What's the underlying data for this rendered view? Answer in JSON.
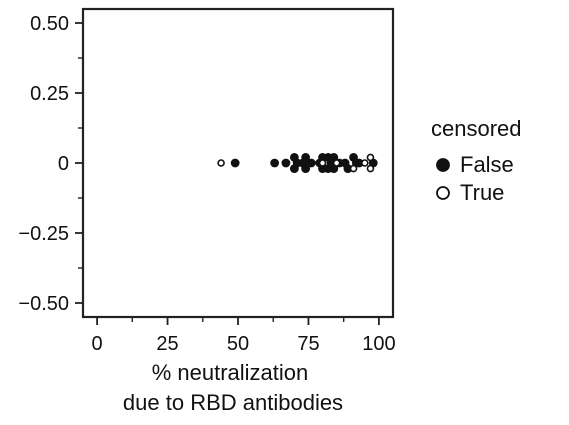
{
  "chart_data": {
    "type": "scatter",
    "xlabel": [
      "% neutralization",
      "due to RBD antibodies"
    ],
    "ylabel": "",
    "xlim": [
      -5,
      105
    ],
    "ylim": [
      -0.55,
      0.55
    ],
    "xticks": [
      {
        "value": 0,
        "label": "0"
      },
      {
        "value": 25,
        "label": "25"
      },
      {
        "value": 50,
        "label": "50"
      },
      {
        "value": 75,
        "label": "75"
      },
      {
        "value": 100,
        "label": "100"
      }
    ],
    "xminor_ticks": [
      12.5,
      37.5,
      62.5,
      87.5
    ],
    "yticks": [
      {
        "value": 0.5,
        "label": "0.50"
      },
      {
        "value": 0.25,
        "label": "0.25"
      },
      {
        "value": 0,
        "label": "0"
      },
      {
        "value": -0.25,
        "label": "−0.25"
      },
      {
        "value": -0.5,
        "label": "−0.50"
      }
    ],
    "yminor_ticks": [
      0.375,
      0.125,
      -0.125,
      -0.375
    ],
    "legend": {
      "title": "censored",
      "position": "right",
      "entries": [
        {
          "label": "False",
          "marker": "filled-circle"
        },
        {
          "label": "True",
          "marker": "open-circle"
        }
      ]
    },
    "series": [
      {
        "name": "False",
        "marker": "filled",
        "points": [
          {
            "x": 49,
            "y": 0.0
          },
          {
            "x": 63,
            "y": 0.0
          },
          {
            "x": 67,
            "y": 0.0
          },
          {
            "x": 70,
            "y": 0.02
          },
          {
            "x": 70,
            "y": -0.02
          },
          {
            "x": 71,
            "y": 0.0
          },
          {
            "x": 73,
            "y": 0.0
          },
          {
            "x": 74,
            "y": 0.02
          },
          {
            "x": 74,
            "y": -0.02
          },
          {
            "x": 76,
            "y": 0.0
          },
          {
            "x": 79,
            "y": 0.0
          },
          {
            "x": 80,
            "y": 0.02
          },
          {
            "x": 80,
            "y": -0.02
          },
          {
            "x": 82,
            "y": 0.02
          },
          {
            "x": 82,
            "y": -0.02
          },
          {
            "x": 83,
            "y": 0.0
          },
          {
            "x": 84,
            "y": 0.02
          },
          {
            "x": 84,
            "y": -0.02
          },
          {
            "x": 86,
            "y": 0.0
          },
          {
            "x": 88,
            "y": 0.0
          },
          {
            "x": 89,
            "y": -0.02
          },
          {
            "x": 91,
            "y": 0.02
          },
          {
            "x": 92,
            "y": 0.0
          },
          {
            "x": 93,
            "y": 0.0
          },
          {
            "x": 98,
            "y": 0.0
          }
        ]
      },
      {
        "name": "True",
        "marker": "open",
        "points": [
          {
            "x": 44,
            "y": 0.0
          },
          {
            "x": 80,
            "y": 0.0
          },
          {
            "x": 85,
            "y": 0.0
          },
          {
            "x": 91,
            "y": -0.02
          },
          {
            "x": 95,
            "y": 0.0
          },
          {
            "x": 97,
            "y": 0.02
          },
          {
            "x": 97,
            "y": -0.02
          }
        ]
      }
    ]
  }
}
